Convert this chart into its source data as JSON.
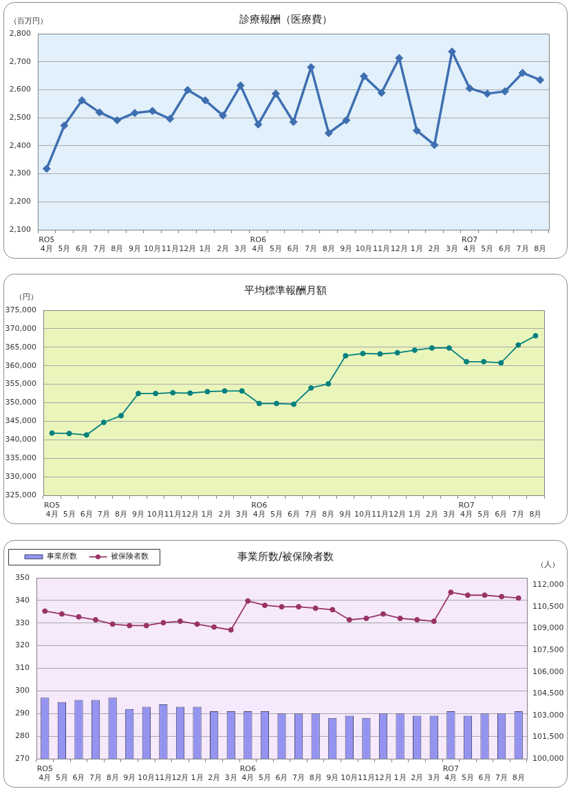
{
  "chart_data": [
    {
      "type": "line",
      "title": "診療報酬（医療費）",
      "ylabel": "（百万円）",
      "categories": [
        "RO5\n4月",
        "5月",
        "6月",
        "7月",
        "8月",
        "9月",
        "10月",
        "11月",
        "12月",
        "1月",
        "2月",
        "3月",
        "RO6\n4月",
        "5月",
        "6月",
        "7月",
        "8月",
        "9月",
        "10月",
        "11月",
        "12月",
        "1月",
        "2月",
        "3月",
        "RO7\n4月",
        "5月",
        "6月",
        "7月",
        "8月"
      ],
      "values": [
        2318,
        2472,
        2562,
        2519,
        2491,
        2517,
        2524,
        2496,
        2599,
        2562,
        2508,
        2615,
        2476,
        2586,
        2485,
        2680,
        2445,
        2491,
        2648,
        2589,
        2713,
        2454,
        2403,
        2736,
        2605,
        2586,
        2594,
        2660,
        2635
      ],
      "color": "#3e6fb0",
      "ylim": [
        2100,
        2800
      ],
      "yticks": [
        {
          "value": 2100,
          "label": "2,100"
        },
        {
          "value": 2200,
          "label": "2,200"
        },
        {
          "value": 2300,
          "label": "2,300"
        },
        {
          "value": 2400,
          "label": "2,400"
        },
        {
          "value": 2500,
          "label": "2,500"
        },
        {
          "value": 2600,
          "label": "2,600"
        },
        {
          "value": 2700,
          "label": "2,700"
        },
        {
          "value": 2800,
          "label": "2,800"
        }
      ],
      "grid": "y",
      "marker": "diamond"
    },
    {
      "type": "line",
      "title": "平均標準報酬月額",
      "ylabel": "（円）",
      "categories": [
        "RO5\n4月",
        "5月",
        "6月",
        "7月",
        "8月",
        "9月",
        "10月",
        "11月",
        "12月",
        "1月",
        "2月",
        "3月",
        "RO6\n4月",
        "5月",
        "6月",
        "7月",
        "8月",
        "9月",
        "10月",
        "11月",
        "12月",
        "1月",
        "2月",
        "3月",
        "RO7\n4月",
        "5月",
        "6月",
        "7月",
        "8月"
      ],
      "values": [
        341800,
        341700,
        341300,
        344700,
        346500,
        352500,
        352500,
        352700,
        352600,
        353000,
        353200,
        353200,
        349800,
        349800,
        349600,
        354000,
        355100,
        362700,
        363300,
        363200,
        363500,
        364200,
        364800,
        364800,
        361100,
        361100,
        360800,
        365600,
        368100
      ],
      "color": "#00807f",
      "ylim": [
        325000,
        375000
      ],
      "yticks": [
        {
          "value": 325000,
          "label": "325,000"
        },
        {
          "value": 330000,
          "label": "330,000"
        },
        {
          "value": 335000,
          "label": "335,000"
        },
        {
          "value": 340000,
          "label": "340,000"
        },
        {
          "value": 345000,
          "label": "345,000"
        },
        {
          "value": 350000,
          "label": "350,000"
        },
        {
          "value": 355000,
          "label": "355,000"
        },
        {
          "value": 360000,
          "label": "360,000"
        },
        {
          "value": 365000,
          "label": "365,000"
        },
        {
          "value": 370000,
          "label": "370,000"
        },
        {
          "value": 375000,
          "label": "375,000"
        }
      ],
      "grid": "y",
      "marker": "circle"
    },
    {
      "type": "bar",
      "title": "事業所数/被保険者数",
      "y2label": "（人）",
      "categories": [
        "RO5\n4月",
        "5月",
        "6月",
        "7月",
        "8月",
        "9月",
        "10月",
        "11月",
        "12月",
        "1月",
        "2月",
        "3月",
        "RO6\n4月",
        "5月",
        "6月",
        "7月",
        "8月",
        "9月",
        "10月",
        "11月",
        "12月",
        "1月",
        "2月",
        "3月",
        "RO7\n4月",
        "5月",
        "6月",
        "7月",
        "8月"
      ],
      "series": [
        {
          "name": "事業所数",
          "type": "bar",
          "color": "#9494f0",
          "values": [
            297,
            295,
            296,
            296,
            297,
            292,
            293,
            294,
            293,
            293,
            291,
            291,
            291,
            291,
            290,
            290,
            290,
            288,
            289,
            288,
            290,
            290,
            289,
            289,
            291,
            289,
            290,
            290,
            291
          ]
        },
        {
          "name": "被保険者数",
          "type": "line",
          "axis": "y2",
          "color": "#993366",
          "values": [
            110200,
            110000,
            109800,
            109600,
            109300,
            109200,
            109200,
            109400,
            109500,
            109300,
            109100,
            108900,
            110900,
            110600,
            110500,
            110500,
            110400,
            110300,
            109600,
            109700,
            110000,
            109700,
            109600,
            109500,
            111500,
            111300,
            111300,
            111200,
            111100
          ]
        }
      ],
      "ylim": [
        270,
        350
      ],
      "yticks": [
        270,
        280,
        290,
        300,
        310,
        320,
        330,
        340,
        350
      ],
      "y2lim": [
        100000,
        112500
      ],
      "y2ticks": [
        {
          "value": 100000,
          "label": "100,000"
        },
        {
          "value": 101500,
          "label": "101,500"
        },
        {
          "value": 103000,
          "label": "103,000"
        },
        {
          "value": 104500,
          "label": "104,500"
        },
        {
          "value": 106000,
          "label": "106,000"
        },
        {
          "value": 107500,
          "label": "107,500"
        },
        {
          "value": 109000,
          "label": "109,000"
        },
        {
          "value": 110500,
          "label": "110,500"
        },
        {
          "value": 112000,
          "label": "112,000"
        }
      ],
      "grid": "y",
      "legend": "top left",
      "marker": "circle"
    }
  ]
}
